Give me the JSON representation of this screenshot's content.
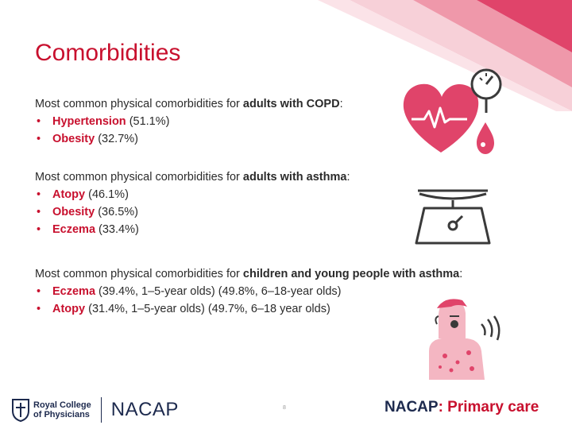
{
  "title": "Comorbidities",
  "sections": [
    {
      "intro": "Most common physical comorbidities for ",
      "highlight": "adults with COPD",
      "suffix": ":",
      "items": [
        {
          "label": "Hypertension",
          "detail": " (51.1%)"
        },
        {
          "label": "Obesity",
          "detail": " (32.7%)"
        }
      ]
    },
    {
      "intro": "Most common physical comorbidities for ",
      "highlight": "adults with asthma",
      "suffix": ":",
      "items": [
        {
          "label": "Atopy",
          "detail": " (46.1%)"
        },
        {
          "label": "Obesity",
          "detail": " (36.5%)"
        },
        {
          "label": "Eczema",
          "detail": " (33.4%)"
        }
      ]
    },
    {
      "intro": "Most common physical comorbidities for ",
      "highlight": "children and young people with asthma",
      "suffix": ":",
      "items": [
        {
          "label": "Eczema",
          "detail": " (39.4%, 1–5-year olds) (49.8%, 6–18-year olds)"
        },
        {
          "label": "Atopy",
          "detail": " (31.4%, 1–5-year olds) (49.7%, 6–18 year olds)"
        }
      ]
    }
  ],
  "footer": {
    "rcp_line1": "Royal College",
    "rcp_line2": "of Physicians",
    "nacap_logo": "NACAP",
    "page_number": "8",
    "brand_part1": "NACAP",
    "brand_part2": ": Primary care"
  },
  "colors": {
    "accent": "#c8102e",
    "navy": "#1d2a4e",
    "pink_light": "#f4b6c2",
    "pink_mid": "#e8758c"
  }
}
